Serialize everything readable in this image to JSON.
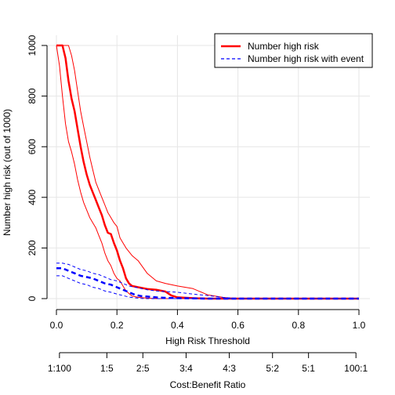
{
  "chart_data": {
    "type": "line",
    "xlabel": "High Risk Threshold",
    "ylabel": "Number high risk (out of 1000)",
    "xlim": [
      0,
      1
    ],
    "ylim": [
      0,
      1000
    ],
    "x_ticks": [
      "0.0",
      "0.2",
      "0.4",
      "0.6",
      "0.8",
      "1.0"
    ],
    "y_ticks": [
      "0",
      "200",
      "400",
      "600",
      "800",
      "1000"
    ],
    "grid": true,
    "legend_position": "top-right",
    "secondary_axis": {
      "label": "Cost:Benefit Ratio",
      "ticks": [
        {
          "x": 0.01,
          "label": "1:100"
        },
        {
          "x": 0.1667,
          "label": "1:5"
        },
        {
          "x": 0.2857,
          "label": "2:5"
        },
        {
          "x": 0.4286,
          "label": "3:4"
        },
        {
          "x": 0.5714,
          "label": "4:3"
        },
        {
          "x": 0.7143,
          "label": "5:2"
        },
        {
          "x": 0.8333,
          "label": "5:1"
        },
        {
          "x": 0.9901,
          "label": "100:1"
        }
      ]
    },
    "series": [
      {
        "name": "Number high risk",
        "color": "#ff0000",
        "style": "solid",
        "x": [
          0.0,
          0.01,
          0.02,
          0.03,
          0.04,
          0.05,
          0.06,
          0.07,
          0.08,
          0.09,
          0.1,
          0.11,
          0.12,
          0.13,
          0.14,
          0.15,
          0.16,
          0.17,
          0.18,
          0.19,
          0.2,
          0.21,
          0.22,
          0.23,
          0.24,
          0.25,
          0.27,
          0.3,
          0.33,
          0.36,
          0.38,
          0.4,
          0.45,
          0.5,
          0.55,
          0.6,
          0.7,
          0.8,
          0.9,
          1.0
        ],
        "y": [
          1000,
          1000,
          1000,
          950,
          860,
          790,
          740,
          670,
          600,
          540,
          490,
          450,
          420,
          390,
          360,
          330,
          290,
          260,
          255,
          220,
          190,
          150,
          120,
          80,
          60,
          50,
          45,
          38,
          35,
          28,
          12,
          5,
          2,
          0,
          0,
          0,
          0,
          0,
          0,
          0
        ]
      },
      {
        "name": "Number high risk upper",
        "color": "#ff0000",
        "style": "solid-thin",
        "x": [
          0.0,
          0.01,
          0.02,
          0.03,
          0.04,
          0.05,
          0.06,
          0.07,
          0.08,
          0.09,
          0.1,
          0.11,
          0.12,
          0.13,
          0.14,
          0.15,
          0.16,
          0.17,
          0.18,
          0.19,
          0.2,
          0.21,
          0.22,
          0.23,
          0.24,
          0.25,
          0.27,
          0.3,
          0.33,
          0.36,
          0.38,
          0.4,
          0.45,
          0.5,
          0.55,
          0.6,
          0.7,
          0.8,
          0.9,
          1.0
        ],
        "y": [
          1000,
          1000,
          1000,
          1000,
          1000,
          960,
          900,
          820,
          740,
          680,
          620,
          560,
          510,
          460,
          430,
          400,
          370,
          340,
          320,
          300,
          285,
          240,
          220,
          200,
          185,
          170,
          150,
          100,
          70,
          60,
          55,
          50,
          40,
          15,
          5,
          0,
          0,
          0,
          0,
          0
        ]
      },
      {
        "name": "Number high risk lower",
        "color": "#ff0000",
        "style": "solid-thin",
        "x": [
          0.0,
          0.01,
          0.02,
          0.03,
          0.04,
          0.05,
          0.06,
          0.07,
          0.08,
          0.09,
          0.1,
          0.11,
          0.12,
          0.13,
          0.14,
          0.15,
          0.16,
          0.17,
          0.18,
          0.19,
          0.2,
          0.21,
          0.22,
          0.23,
          0.24,
          0.25,
          0.27,
          0.3,
          0.33,
          0.36,
          0.38,
          0.4,
          0.45,
          0.5,
          0.55,
          0.6,
          0.7,
          0.8,
          0.9,
          1.0
        ],
        "y": [
          1000,
          920,
          800,
          690,
          620,
          580,
          530,
          470,
          420,
          380,
          350,
          320,
          300,
          280,
          250,
          220,
          180,
          150,
          130,
          100,
          80,
          70,
          50,
          30,
          20,
          10,
          5,
          2,
          0,
          0,
          0,
          0,
          0,
          0,
          0,
          0,
          0,
          0,
          0,
          0
        ]
      },
      {
        "name": "Number high risk with event",
        "color": "#0000ff",
        "style": "dashed",
        "x": [
          0.0,
          0.02,
          0.04,
          0.06,
          0.08,
          0.1,
          0.12,
          0.14,
          0.16,
          0.18,
          0.2,
          0.22,
          0.24,
          0.26,
          0.28,
          0.3,
          0.33,
          0.36,
          0.4,
          0.45,
          0.5,
          0.55,
          0.6,
          0.7,
          0.8,
          0.9,
          1.0
        ],
        "y": [
          120,
          120,
          110,
          100,
          90,
          85,
          80,
          70,
          60,
          55,
          45,
          35,
          25,
          15,
          10,
          8,
          5,
          3,
          2,
          1,
          0,
          0,
          0,
          0,
          0,
          0,
          0
        ]
      },
      {
        "name": "Number high risk with event upper",
        "color": "#0000ff",
        "style": "dashed-thin",
        "x": [
          0.0,
          0.02,
          0.04,
          0.06,
          0.08,
          0.1,
          0.12,
          0.14,
          0.16,
          0.18,
          0.2,
          0.22,
          0.24,
          0.26,
          0.28,
          0.3,
          0.33,
          0.36,
          0.4,
          0.45,
          0.5,
          0.55,
          0.6,
          0.7,
          0.8,
          0.9,
          1.0
        ],
        "y": [
          140,
          140,
          135,
          125,
          115,
          110,
          100,
          95,
          85,
          75,
          70,
          60,
          50,
          45,
          40,
          35,
          30,
          28,
          25,
          18,
          12,
          5,
          0,
          0,
          0,
          0,
          0
        ]
      },
      {
        "name": "Number high risk with event lower",
        "color": "#0000ff",
        "style": "dashed-thin",
        "x": [
          0.0,
          0.02,
          0.04,
          0.06,
          0.08,
          0.1,
          0.12,
          0.14,
          0.16,
          0.18,
          0.2,
          0.22,
          0.24,
          0.26,
          0.28,
          0.3,
          0.33,
          0.36,
          0.4,
          0.45,
          0.5,
          0.55,
          0.6,
          0.7,
          0.8,
          0.9,
          1.0
        ],
        "y": [
          90,
          90,
          80,
          70,
          60,
          55,
          45,
          40,
          30,
          25,
          18,
          12,
          6,
          3,
          1,
          0,
          0,
          0,
          0,
          0,
          0,
          0,
          0,
          0,
          0,
          0,
          0
        ]
      }
    ],
    "legend": [
      {
        "label": "Number high risk",
        "color": "#ff0000",
        "style": "solid"
      },
      {
        "label": "Number high risk with event",
        "color": "#0000ff",
        "style": "dashed"
      }
    ]
  }
}
